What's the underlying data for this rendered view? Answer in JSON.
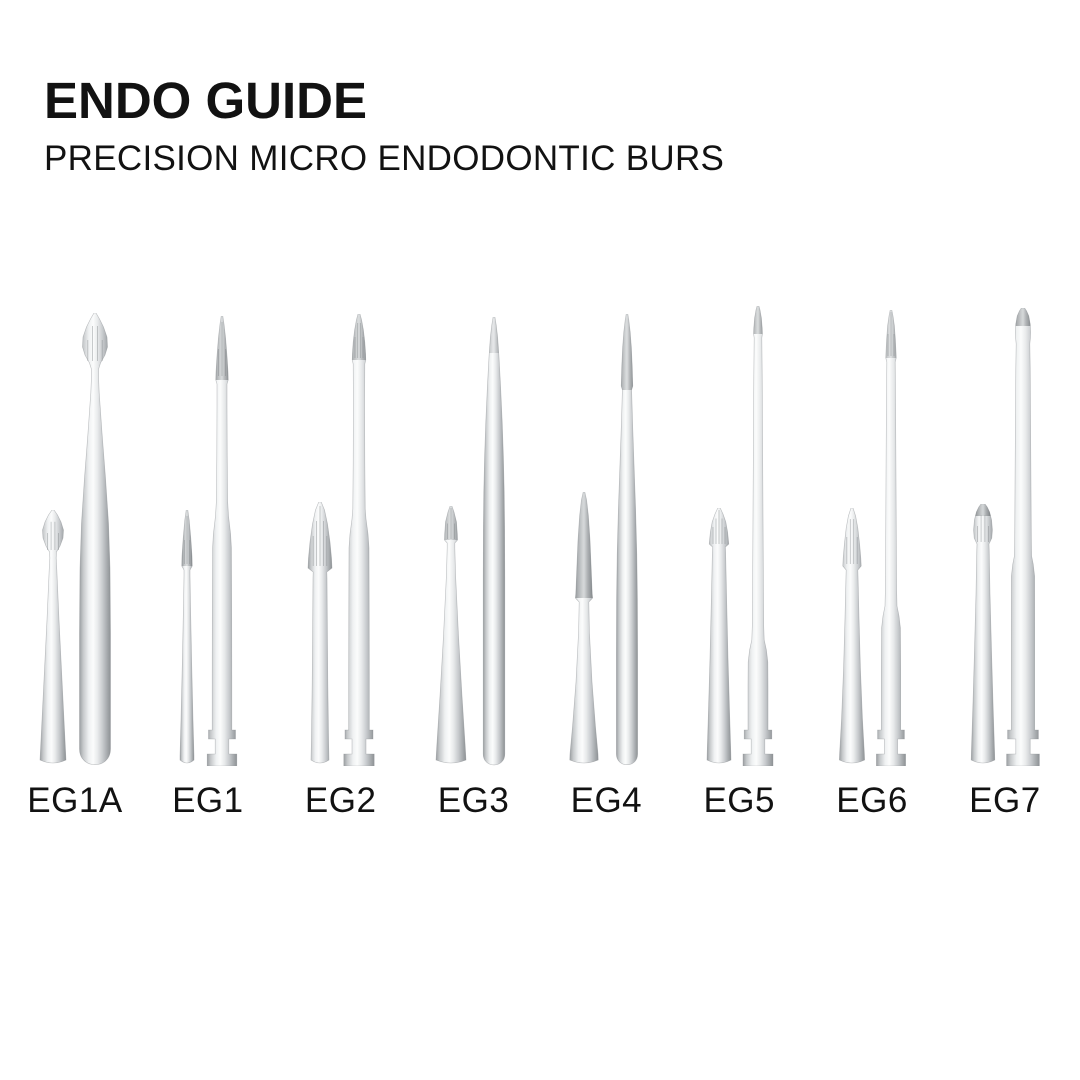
{
  "header": {
    "title": "ENDO GUIDE",
    "subtitle": "PRECISION MICRO ENDODONTIC BURS"
  },
  "products": [
    {
      "id": "eg1a",
      "label": "EG1A",
      "small": "flame head micro bur",
      "large": "flame head bur with round-end shank"
    },
    {
      "id": "eg1",
      "label": "EG1",
      "small": "slender taper point micro bur",
      "large": "needle point bur with latch shank end"
    },
    {
      "id": "eg2",
      "label": "EG2",
      "small": "taper fissure micro bur",
      "large": "point tip bur with latch shank end"
    },
    {
      "id": "eg3",
      "label": "EG3",
      "small": "short point micro bur",
      "large": "smooth taper bur with round-end shank"
    },
    {
      "id": "eg4",
      "label": "EG4",
      "small": "long diamond taper micro bur",
      "large": "needle taper bur with round-end shank"
    },
    {
      "id": "eg5",
      "label": "EG5",
      "small": "short fissure micro bur",
      "large": "long thin needle bur with latch shank end"
    },
    {
      "id": "eg6",
      "label": "EG6",
      "small": "taper fissure micro bur",
      "large": "long thin needle bur with latch shank end"
    },
    {
      "id": "eg7",
      "label": "EG7",
      "small": "bud head micro bur",
      "large": "bud tip bur with latch shank end"
    }
  ],
  "colors": {
    "background": "#ffffff",
    "text": "#121212",
    "metal_highlight": "#fbfcfc",
    "metal_mid": "#d2d5d7",
    "metal_shadow": "#94989b",
    "tip_dark": "#6e7376"
  }
}
